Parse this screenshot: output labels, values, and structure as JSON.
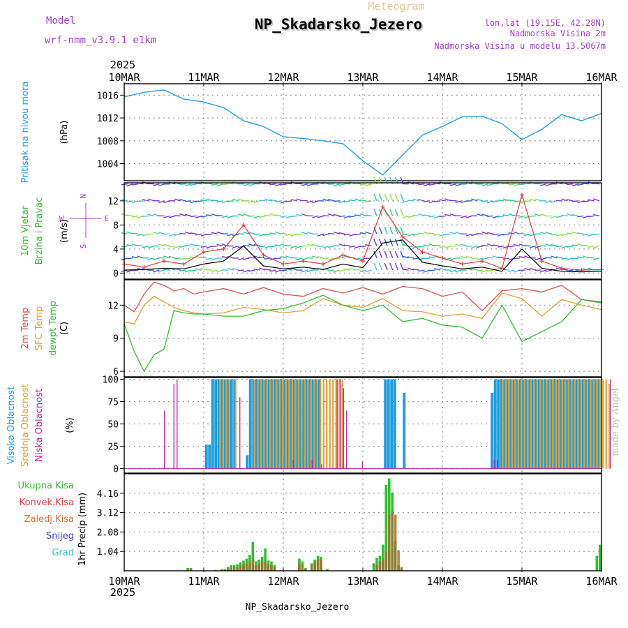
{
  "header": {
    "title": "NP_Skadarsko_Jezero",
    "subtitle": "Meteogram",
    "model_label": "Model",
    "model_name": "wrf-nmm_v3.9.1 e1km",
    "lonlat": "lon,lat (19.15E, 42.28N)",
    "elev": "Nadmorska Visina 2m",
    "model_elev": "Nadmorska Visina u modelu 13.5067m",
    "footer": "NP_Skadarsko_Jezero",
    "credit": "made by Angel",
    "year": "2025"
  },
  "colors": {
    "pressure": "#1ea0e6",
    "wind_gust": "#e83a3a",
    "wind_mean": "#000000",
    "temp2m": "#e05050",
    "sfc_temp": "#e0a030",
    "dewpt": "#30c030",
    "cloud_high": "#1e9ee0",
    "cloud_mid": "#e0a030",
    "cloud_low": "#c020a0",
    "precip_total": "#30c030",
    "precip_conv": "#e04040",
    "precip_frozen": "#e07030",
    "snow": "#4040e0",
    "graupel": "#30c0c0",
    "purple": "#a040d0"
  },
  "x_axis": {
    "ticks": [
      "10MAR",
      "11MAR",
      "12MAR",
      "13MAR",
      "14MAR",
      "15MAR",
      "16MAR"
    ],
    "year": "2025"
  },
  "chart_data": [
    {
      "type": "line",
      "id": "pressure",
      "label_lines": [
        "Pritisak na nivou mora"
      ],
      "unit": "(hPa)",
      "ylim": [
        1001,
        1018
      ],
      "yticks": [
        1004,
        1008,
        1012,
        1016
      ],
      "x_hours": [
        0,
        6,
        12,
        18,
        24,
        30,
        36,
        42,
        48,
        54,
        60,
        66,
        72,
        78,
        84,
        90,
        96,
        102,
        108,
        114,
        120,
        126,
        132,
        138,
        144
      ],
      "values": [
        1015.7,
        1016.5,
        1016.9,
        1015.3,
        1014.8,
        1013.8,
        1011.5,
        1010.5,
        1008.7,
        1008.4,
        1008.0,
        1007.5,
        1004.5,
        1002.0,
        1005.5,
        1009.0,
        1010.5,
        1012.2,
        1012.3,
        1011.0,
        1008.2,
        1010.0,
        1012.6,
        1011.5,
        1012.8
      ]
    },
    {
      "type": "line",
      "id": "wind",
      "label_lines": [
        "10m Vjetar",
        "Brzina i Pravac"
      ],
      "unit": "(m/s)",
      "direction_key": [
        "N",
        "E",
        "W",
        "S"
      ],
      "ylim": [
        -1,
        15
      ],
      "yticks": [
        0,
        4,
        8,
        12
      ],
      "x_hours": [
        0,
        6,
        12,
        18,
        24,
        30,
        36,
        42,
        48,
        54,
        60,
        66,
        72,
        78,
        84,
        90,
        96,
        102,
        108,
        114,
        120,
        126,
        132,
        138,
        144
      ],
      "series": [
        {
          "name": "gust",
          "values": [
            1.5,
            1.0,
            2.0,
            1.5,
            3.5,
            4.0,
            8.0,
            3.0,
            1.5,
            2.0,
            1.5,
            3.0,
            2.0,
            11.0,
            6.0,
            3.5,
            2.5,
            1.5,
            2.0,
            0.8,
            13.0,
            2.0,
            0.8,
            0.5,
            0.6
          ]
        },
        {
          "name": "mean",
          "values": [
            0.5,
            0.6,
            0.8,
            0.7,
            1.5,
            2.0,
            4.5,
            1.2,
            0.7,
            1.0,
            0.6,
            1.5,
            0.9,
            5.0,
            5.5,
            1.8,
            1.2,
            0.7,
            1.0,
            0.3,
            4.0,
            0.8,
            0.3,
            0.2,
            0.3
          ]
        }
      ],
      "barb_levels": [
        0.5,
        2.5,
        4.5,
        6.5,
        9.5,
        12,
        14.8
      ]
    },
    {
      "type": "line",
      "id": "temperature",
      "label_lines": [
        "2m Temp",
        "SFC Temp",
        "dewpt Temp"
      ],
      "unit": "(C)",
      "ylim": [
        5.5,
        14.3
      ],
      "yticks": [
        6,
        9,
        12
      ],
      "x_hours": [
        0,
        3,
        6,
        9,
        12,
        15,
        18,
        21,
        24,
        30,
        36,
        42,
        48,
        54,
        60,
        66,
        72,
        78,
        84,
        90,
        96,
        102,
        108,
        114,
        120,
        126,
        132,
        138,
        144
      ],
      "series": [
        {
          "name": "2m Temp",
          "values": [
            12.0,
            11.4,
            13.0,
            14.1,
            13.8,
            13.3,
            13.5,
            13.0,
            13.2,
            13.5,
            13.0,
            13.6,
            13.0,
            12.8,
            13.5,
            13.1,
            13.6,
            13.0,
            13.7,
            13.5,
            12.8,
            13.2,
            11.5,
            13.3,
            13.5,
            13.2,
            13.8,
            12.5,
            12.3
          ]
        },
        {
          "name": "SFC Temp",
          "values": [
            10.5,
            10.3,
            12.0,
            12.8,
            12.3,
            11.8,
            11.5,
            11.3,
            11.2,
            11.3,
            11.8,
            11.6,
            11.3,
            11.5,
            12.6,
            12.0,
            11.8,
            12.6,
            11.5,
            11.4,
            11.0,
            11.2,
            10.8,
            13.1,
            12.6,
            11.0,
            12.5,
            12.0,
            11.6
          ]
        },
        {
          "name": "dewpt Temp",
          "values": [
            10.3,
            7.8,
            6.0,
            7.5,
            8.0,
            11.5,
            11.3,
            11.2,
            11.2,
            11.0,
            11.0,
            11.5,
            11.7,
            12.2,
            12.9,
            12.0,
            11.5,
            12.0,
            10.5,
            10.8,
            10.2,
            10.0,
            9.0,
            12.0,
            8.7,
            9.6,
            10.5,
            12.5,
            12.2
          ]
        }
      ]
    },
    {
      "type": "bar",
      "id": "clouds",
      "label_lines": [
        "Visoka Oblacnost",
        "Srednja Oblacnost",
        "Niska Oblacnost"
      ],
      "unit": "(%)",
      "ylim": [
        -5,
        102
      ],
      "yticks": [
        0,
        25,
        50,
        75,
        100
      ],
      "series": [
        {
          "name": "high",
          "values": [
            0,
            0,
            0,
            0,
            0,
            0,
            0,
            0,
            0,
            0,
            0,
            0,
            0,
            0,
            0,
            0,
            0,
            0,
            0,
            0,
            0,
            0,
            0,
            0,
            0,
            0,
            27,
            27,
            100,
            100,
            100,
            100,
            100,
            100,
            100,
            100,
            0,
            0,
            0,
            15,
            100,
            100,
            100,
            100,
            100,
            100,
            100,
            100,
            100,
            100,
            100,
            100,
            100,
            100,
            100,
            100,
            100,
            100,
            100,
            100,
            100,
            100,
            100,
            0,
            0,
            0,
            0,
            0,
            0,
            0,
            0,
            0,
            0,
            0,
            0,
            0,
            0,
            0,
            0,
            0,
            0,
            0,
            0,
            100,
            100,
            100,
            100,
            0,
            0,
            85,
            0,
            0,
            0,
            0,
            0,
            0,
            0,
            0,
            0,
            0,
            0,
            0,
            0,
            0,
            0,
            0,
            0,
            0,
            0,
            0,
            0,
            0,
            0,
            0,
            0,
            0,
            0,
            85,
            100,
            100,
            100,
            100,
            100,
            100,
            100,
            100,
            100,
            100,
            100,
            100,
            100,
            100,
            100,
            100,
            100,
            100,
            100,
            100,
            100,
            100,
            100,
            100,
            100,
            100,
            100,
            100,
            100,
            100,
            100,
            100,
            100,
            100
          ]
        },
        {
          "name": "mid",
          "values": [
            0,
            0,
            0,
            0,
            0,
            0,
            0,
            0,
            0,
            0,
            0,
            0,
            0,
            0,
            0,
            0,
            0,
            0,
            0,
            0,
            0,
            0,
            0,
            0,
            0,
            0,
            0,
            0,
            0,
            0,
            100,
            100,
            100,
            100,
            0,
            100,
            0,
            0,
            0,
            0,
            0,
            100,
            100,
            100,
            100,
            100,
            100,
            100,
            100,
            100,
            100,
            100,
            100,
            100,
            100,
            100,
            100,
            100,
            100,
            100,
            100,
            100,
            100,
            100,
            100,
            100,
            100,
            100,
            100,
            100,
            0,
            0,
            0,
            0,
            0,
            0,
            0,
            0,
            0,
            0,
            0,
            0,
            0,
            0,
            0,
            0,
            0,
            0,
            0,
            0,
            0,
            0,
            0,
            0,
            0,
            0,
            0,
            0,
            0,
            0,
            0,
            0,
            0,
            0,
            0,
            0,
            0,
            0,
            0,
            0,
            0,
            0,
            0,
            0,
            0,
            0,
            0,
            0,
            0,
            0,
            100,
            100,
            100,
            100,
            100,
            100,
            100,
            100,
            100,
            100,
            100,
            100,
            100,
            100,
            100,
            100,
            100,
            100,
            100,
            100,
            100,
            100,
            100,
            100,
            100,
            100,
            100,
            100,
            100,
            100,
            100,
            100,
            100,
            100,
            95
          ]
        },
        {
          "name": "low",
          "values": [
            0,
            0,
            0,
            0,
            0,
            0,
            0,
            0,
            0,
            0,
            0,
            0,
            65,
            0,
            0,
            95,
            100,
            0,
            0,
            0,
            0,
            0,
            0,
            0,
            0,
            0,
            0,
            0,
            0,
            0,
            0,
            0,
            0,
            0,
            0,
            0,
            80,
            0,
            0,
            0,
            0,
            0,
            0,
            0,
            0,
            0,
            0,
            0,
            0,
            0,
            0,
            0,
            0,
            10,
            0,
            0,
            0,
            0,
            0,
            10,
            0,
            0,
            5,
            0,
            0,
            0,
            0,
            100,
            100,
            90,
            65,
            0,
            0,
            0,
            0,
            8,
            0,
            0,
            0,
            0,
            0,
            0,
            0,
            0,
            0,
            0,
            0,
            0,
            0,
            0,
            0,
            0,
            0,
            0,
            0,
            0,
            0,
            0,
            0,
            0,
            0,
            0,
            0,
            0,
            0,
            0,
            0,
            0,
            0,
            0,
            0,
            0,
            0,
            0,
            0,
            0,
            0,
            10,
            10,
            0,
            0,
            0,
            0,
            0,
            0,
            0,
            0,
            0,
            0,
            0,
            0,
            0,
            0,
            0,
            0,
            0,
            0,
            0,
            0,
            0,
            0,
            0,
            0,
            0,
            0,
            0,
            0,
            0,
            0,
            0,
            0,
            0,
            0,
            0,
            100
          ]
        }
      ]
    },
    {
      "type": "bar",
      "id": "precip",
      "label_lines": [
        "Ukupna Kisa",
        "Konvek.Kisa",
        "Zaledj.Kisa",
        "Snijeg",
        "Grad"
      ],
      "unit": "1hr Precip (mm)",
      "ylim": [
        0,
        5.2
      ],
      "yticks": [
        1.04,
        2.08,
        3.12,
        4.16
      ],
      "series": [
        {
          "name": "total",
          "values": [
            0,
            0,
            0,
            0,
            0,
            0,
            0,
            0,
            0,
            0,
            0,
            0,
            0,
            0,
            0,
            0,
            0,
            0,
            0,
            0,
            0.15,
            0.15,
            0,
            0,
            0,
            0,
            0,
            0,
            0,
            0.05,
            0,
            0.1,
            0.1,
            0.2,
            0.3,
            0.3,
            0.35,
            0.45,
            0.55,
            0.65,
            0.85,
            1.55,
            0.5,
            0.6,
            0.75,
            1.2,
            0.55,
            0.5,
            0.3,
            0,
            0,
            0,
            0,
            0,
            0,
            0,
            0.65,
            0.5,
            0.15,
            0,
            0.4,
            0.6,
            0.8,
            0.75,
            0,
            0.1,
            0,
            0,
            0,
            0,
            0,
            0,
            0,
            0,
            0,
            0,
            0,
            0,
            0,
            0,
            0.4,
            0.7,
            0.8,
            1.4,
            4.6,
            4.95,
            4.2,
            1.6,
            0.3,
            0.1,
            0,
            0,
            0,
            0,
            0,
            0,
            0,
            0,
            0,
            0,
            0,
            0,
            0,
            0,
            0,
            0,
            0,
            0,
            0,
            0,
            0,
            0,
            0,
            0,
            0,
            0,
            0,
            0,
            0,
            0,
            0,
            0,
            0,
            0,
            0,
            0,
            0,
            0,
            0,
            0,
            0,
            0,
            0,
            0,
            0,
            0,
            0,
            0,
            0,
            0,
            0,
            0,
            0,
            0,
            0,
            0,
            0,
            0,
            0,
            0,
            0,
            0,
            0.8,
            1.4
          ]
        },
        {
          "name": "conv",
          "values": [
            0,
            0,
            0,
            0,
            0,
            0,
            0,
            0,
            0,
            0,
            0,
            0,
            0,
            0,
            0,
            0,
            0,
            0,
            0,
            0,
            0.1,
            0.1,
            0,
            0,
            0,
            0,
            0,
            0,
            0,
            0,
            0,
            0.05,
            0.05,
            0.1,
            0.15,
            0.2,
            0.2,
            0.3,
            0.35,
            0.4,
            0.5,
            0.6,
            0.3,
            0.4,
            0.5,
            0.5,
            0.35,
            0.3,
            0.2,
            0,
            0,
            0,
            0,
            0,
            0,
            0,
            0.4,
            0.3,
            0.1,
            0,
            0.3,
            0.45,
            0.6,
            0.6,
            0,
            0.05,
            0,
            0,
            0,
            0,
            0,
            0,
            0,
            0,
            0,
            0,
            0,
            0,
            0,
            0,
            0,
            0.3,
            0.5,
            0.6,
            1.0,
            3.0,
            3.2,
            3.0,
            1.1,
            0.2,
            0.05,
            0,
            0,
            0,
            0,
            0,
            0,
            0,
            0,
            0,
            0,
            0,
            0,
            0,
            0,
            0,
            0,
            0,
            0,
            0,
            0,
            0,
            0,
            0,
            0,
            0,
            0,
            0,
            0,
            0,
            0,
            0,
            0,
            0,
            0,
            0,
            0,
            0,
            0,
            0,
            0,
            0,
            0,
            0,
            0,
            0,
            0,
            0,
            0,
            0,
            0,
            0,
            0,
            0,
            0,
            0,
            0,
            0,
            0,
            0,
            0,
            0,
            0,
            0,
            0.6,
            1.4
          ]
        }
      ]
    }
  ]
}
